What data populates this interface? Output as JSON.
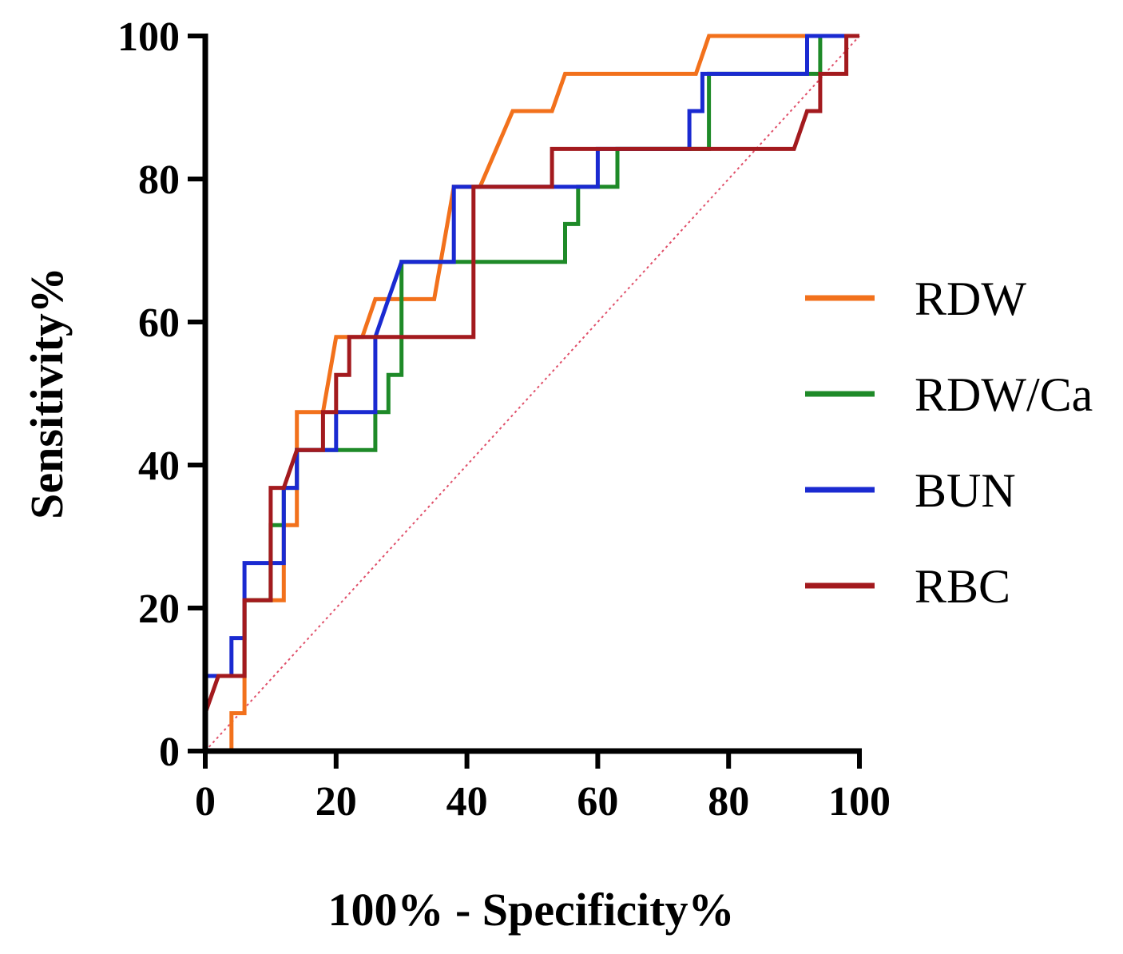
{
  "chart_data": {
    "type": "line",
    "xlabel": "100% - Specificity%",
    "ylabel": "Sensitivity%",
    "xlim": [
      0,
      100
    ],
    "ylim": [
      0,
      100
    ],
    "x_ticks": [
      "0",
      "20",
      "40",
      "60",
      "80",
      "100"
    ],
    "y_ticks": [
      "0",
      "20",
      "40",
      "60",
      "80",
      "100"
    ],
    "grid": false,
    "legend_position": "right",
    "reference_line": {
      "type": "diagonal",
      "color": "#e0506a",
      "style": "dotted"
    },
    "series": [
      {
        "name": "RDW",
        "color": "#f2711c",
        "points": [
          [
            0,
            0
          ],
          [
            4,
            0
          ],
          [
            4,
            5.3
          ],
          [
            6,
            5.3
          ],
          [
            6,
            21.1
          ],
          [
            12,
            21.1
          ],
          [
            12,
            31.6
          ],
          [
            14,
            31.6
          ],
          [
            14,
            47.4
          ],
          [
            18,
            47.4
          ],
          [
            20,
            57.9
          ],
          [
            24,
            57.9
          ],
          [
            26,
            63.2
          ],
          [
            35,
            63.2
          ],
          [
            38,
            78.9
          ],
          [
            42,
            78.9
          ],
          [
            47,
            89.5
          ],
          [
            53,
            89.5
          ],
          [
            55,
            94.7
          ],
          [
            75,
            94.7
          ],
          [
            77,
            100
          ],
          [
            100,
            100
          ]
        ]
      },
      {
        "name": "RDW/Ca",
        "color": "#1e8a28",
        "points": [
          [
            0,
            0
          ],
          [
            0,
            10.5
          ],
          [
            6,
            10.5
          ],
          [
            6,
            21.1
          ],
          [
            10,
            21.1
          ],
          [
            10,
            31.6
          ],
          [
            12,
            31.6
          ],
          [
            12,
            36.8
          ],
          [
            14,
            36.8
          ],
          [
            14,
            42.1
          ],
          [
            20,
            42.1
          ],
          [
            26,
            42.1
          ],
          [
            26,
            47.4
          ],
          [
            28,
            47.4
          ],
          [
            28,
            52.6
          ],
          [
            30,
            52.6
          ],
          [
            30,
            68.4
          ],
          [
            55,
            68.4
          ],
          [
            55,
            73.7
          ],
          [
            57,
            73.7
          ],
          [
            57,
            78.9
          ],
          [
            63,
            78.9
          ],
          [
            63,
            84.2
          ],
          [
            77,
            84.2
          ],
          [
            77,
            94.7
          ],
          [
            94,
            94.7
          ],
          [
            94,
            100
          ],
          [
            100,
            100
          ]
        ]
      },
      {
        "name": "BUN",
        "color": "#1a2ad1",
        "points": [
          [
            0,
            5.3
          ],
          [
            0,
            10.5
          ],
          [
            4,
            10.5
          ],
          [
            4,
            15.8
          ],
          [
            6,
            15.8
          ],
          [
            6,
            26.3
          ],
          [
            12,
            26.3
          ],
          [
            12,
            36.8
          ],
          [
            14,
            36.8
          ],
          [
            14,
            42.1
          ],
          [
            20,
            42.1
          ],
          [
            20,
            47.4
          ],
          [
            26,
            47.4
          ],
          [
            26,
            57.9
          ],
          [
            28,
            63.2
          ],
          [
            30,
            68.4
          ],
          [
            38,
            68.4
          ],
          [
            38,
            78.9
          ],
          [
            60,
            78.9
          ],
          [
            60,
            84.2
          ],
          [
            74,
            84.2
          ],
          [
            74,
            89.5
          ],
          [
            76,
            89.5
          ],
          [
            76,
            94.7
          ],
          [
            92,
            94.7
          ],
          [
            92,
            100
          ],
          [
            100,
            100
          ]
        ]
      },
      {
        "name": "RBC",
        "color": "#a31a1e",
        "points": [
          [
            0,
            0
          ],
          [
            0,
            5.3
          ],
          [
            2,
            10.5
          ],
          [
            6,
            10.5
          ],
          [
            6,
            21.1
          ],
          [
            10,
            21.1
          ],
          [
            10,
            36.8
          ],
          [
            12,
            36.8
          ],
          [
            14,
            42.1
          ],
          [
            18,
            42.1
          ],
          [
            18,
            47.4
          ],
          [
            20,
            47.4
          ],
          [
            20,
            52.6
          ],
          [
            22,
            52.6
          ],
          [
            22,
            57.9
          ],
          [
            41,
            57.9
          ],
          [
            41,
            78.9
          ],
          [
            53,
            78.9
          ],
          [
            53,
            84.2
          ],
          [
            90,
            84.2
          ],
          [
            92,
            89.5
          ],
          [
            94,
            89.5
          ],
          [
            94,
            94.7
          ],
          [
            98,
            94.7
          ],
          [
            98,
            100
          ],
          [
            100,
            100
          ]
        ]
      }
    ]
  }
}
